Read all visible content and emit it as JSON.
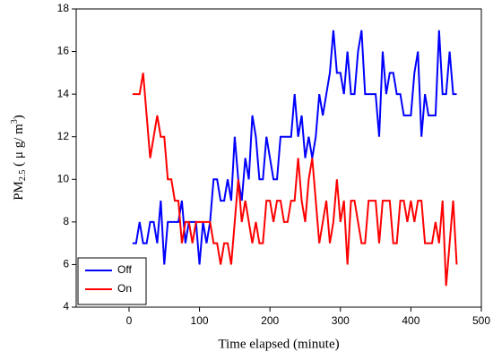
{
  "chart_data": {
    "type": "line",
    "xlabel": "Time elapsed (minute)",
    "ylabel": {
      "main": "PM",
      "sub": "2.5",
      "mid": " ( μ g/ m",
      "sup": "3",
      "end": ")"
    },
    "x": [
      5,
      10,
      15,
      20,
      25,
      30,
      35,
      40,
      45,
      50,
      55,
      60,
      65,
      70,
      75,
      80,
      85,
      90,
      95,
      100,
      105,
      110,
      115,
      120,
      125,
      130,
      135,
      140,
      145,
      150,
      155,
      160,
      165,
      170,
      175,
      180,
      185,
      190,
      195,
      200,
      205,
      210,
      215,
      220,
      225,
      230,
      235,
      240,
      245,
      250,
      255,
      260,
      265,
      270,
      275,
      280,
      285,
      290,
      295,
      300,
      305,
      310,
      315,
      320,
      325,
      330,
      335,
      340,
      345,
      350,
      355,
      360,
      365,
      370,
      375,
      380,
      385,
      390,
      395,
      400,
      405,
      410,
      415,
      420,
      425,
      430,
      435,
      440,
      445,
      450,
      455,
      460,
      465
    ],
    "series": [
      {
        "name": "Off",
        "color": "#0000ff",
        "values": [
          7,
          7,
          8,
          7,
          7,
          8,
          8,
          7,
          9,
          6,
          8,
          8,
          8,
          8,
          9,
          7,
          8,
          8,
          8,
          6,
          8,
          7,
          8,
          10,
          10,
          9,
          9,
          10,
          9,
          12,
          10,
          9,
          11,
          10,
          13,
          12,
          10,
          10,
          12,
          11,
          10,
          10,
          12,
          12,
          12,
          12,
          14,
          12,
          13,
          11,
          12,
          11,
          12,
          14,
          13,
          14,
          15,
          17,
          15,
          15,
          14,
          16,
          14,
          14,
          16,
          17,
          14,
          14,
          14,
          14,
          12,
          16,
          14,
          15,
          15,
          14,
          14,
          13,
          13,
          13,
          15,
          16,
          12,
          14,
          13,
          13,
          13,
          17,
          14,
          14,
          16,
          14,
          14
        ]
      },
      {
        "name": "On",
        "color": "#ff0000",
        "values": [
          14,
          14,
          14,
          15,
          13,
          11,
          12,
          13,
          12,
          12,
          10,
          10,
          9,
          9,
          7,
          8,
          8,
          7,
          8,
          8,
          8,
          8,
          8,
          7,
          7,
          6,
          7,
          7,
          6,
          8,
          10,
          8,
          9,
          8,
          7,
          8,
          7,
          7,
          9,
          9,
          8,
          9,
          9,
          8,
          8,
          9,
          9,
          11,
          9,
          8,
          10,
          11,
          9,
          7,
          8,
          9,
          7,
          8,
          10,
          8,
          9,
          6,
          9,
          9,
          8,
          7,
          7,
          9,
          9,
          9,
          7,
          9,
          9,
          9,
          7,
          7,
          9,
          9,
          8,
          9,
          8,
          9,
          9,
          7,
          7,
          7,
          8,
          7,
          9,
          5,
          7,
          9,
          6
        ]
      }
    ],
    "xlim": [
      -75,
      500
    ],
    "xticks": [
      0,
      100,
      200,
      300,
      400,
      500
    ],
    "ylim": [
      4,
      18
    ],
    "yticks": [
      4,
      6,
      8,
      10,
      12,
      14,
      16,
      18
    ],
    "legend": "lower left"
  }
}
